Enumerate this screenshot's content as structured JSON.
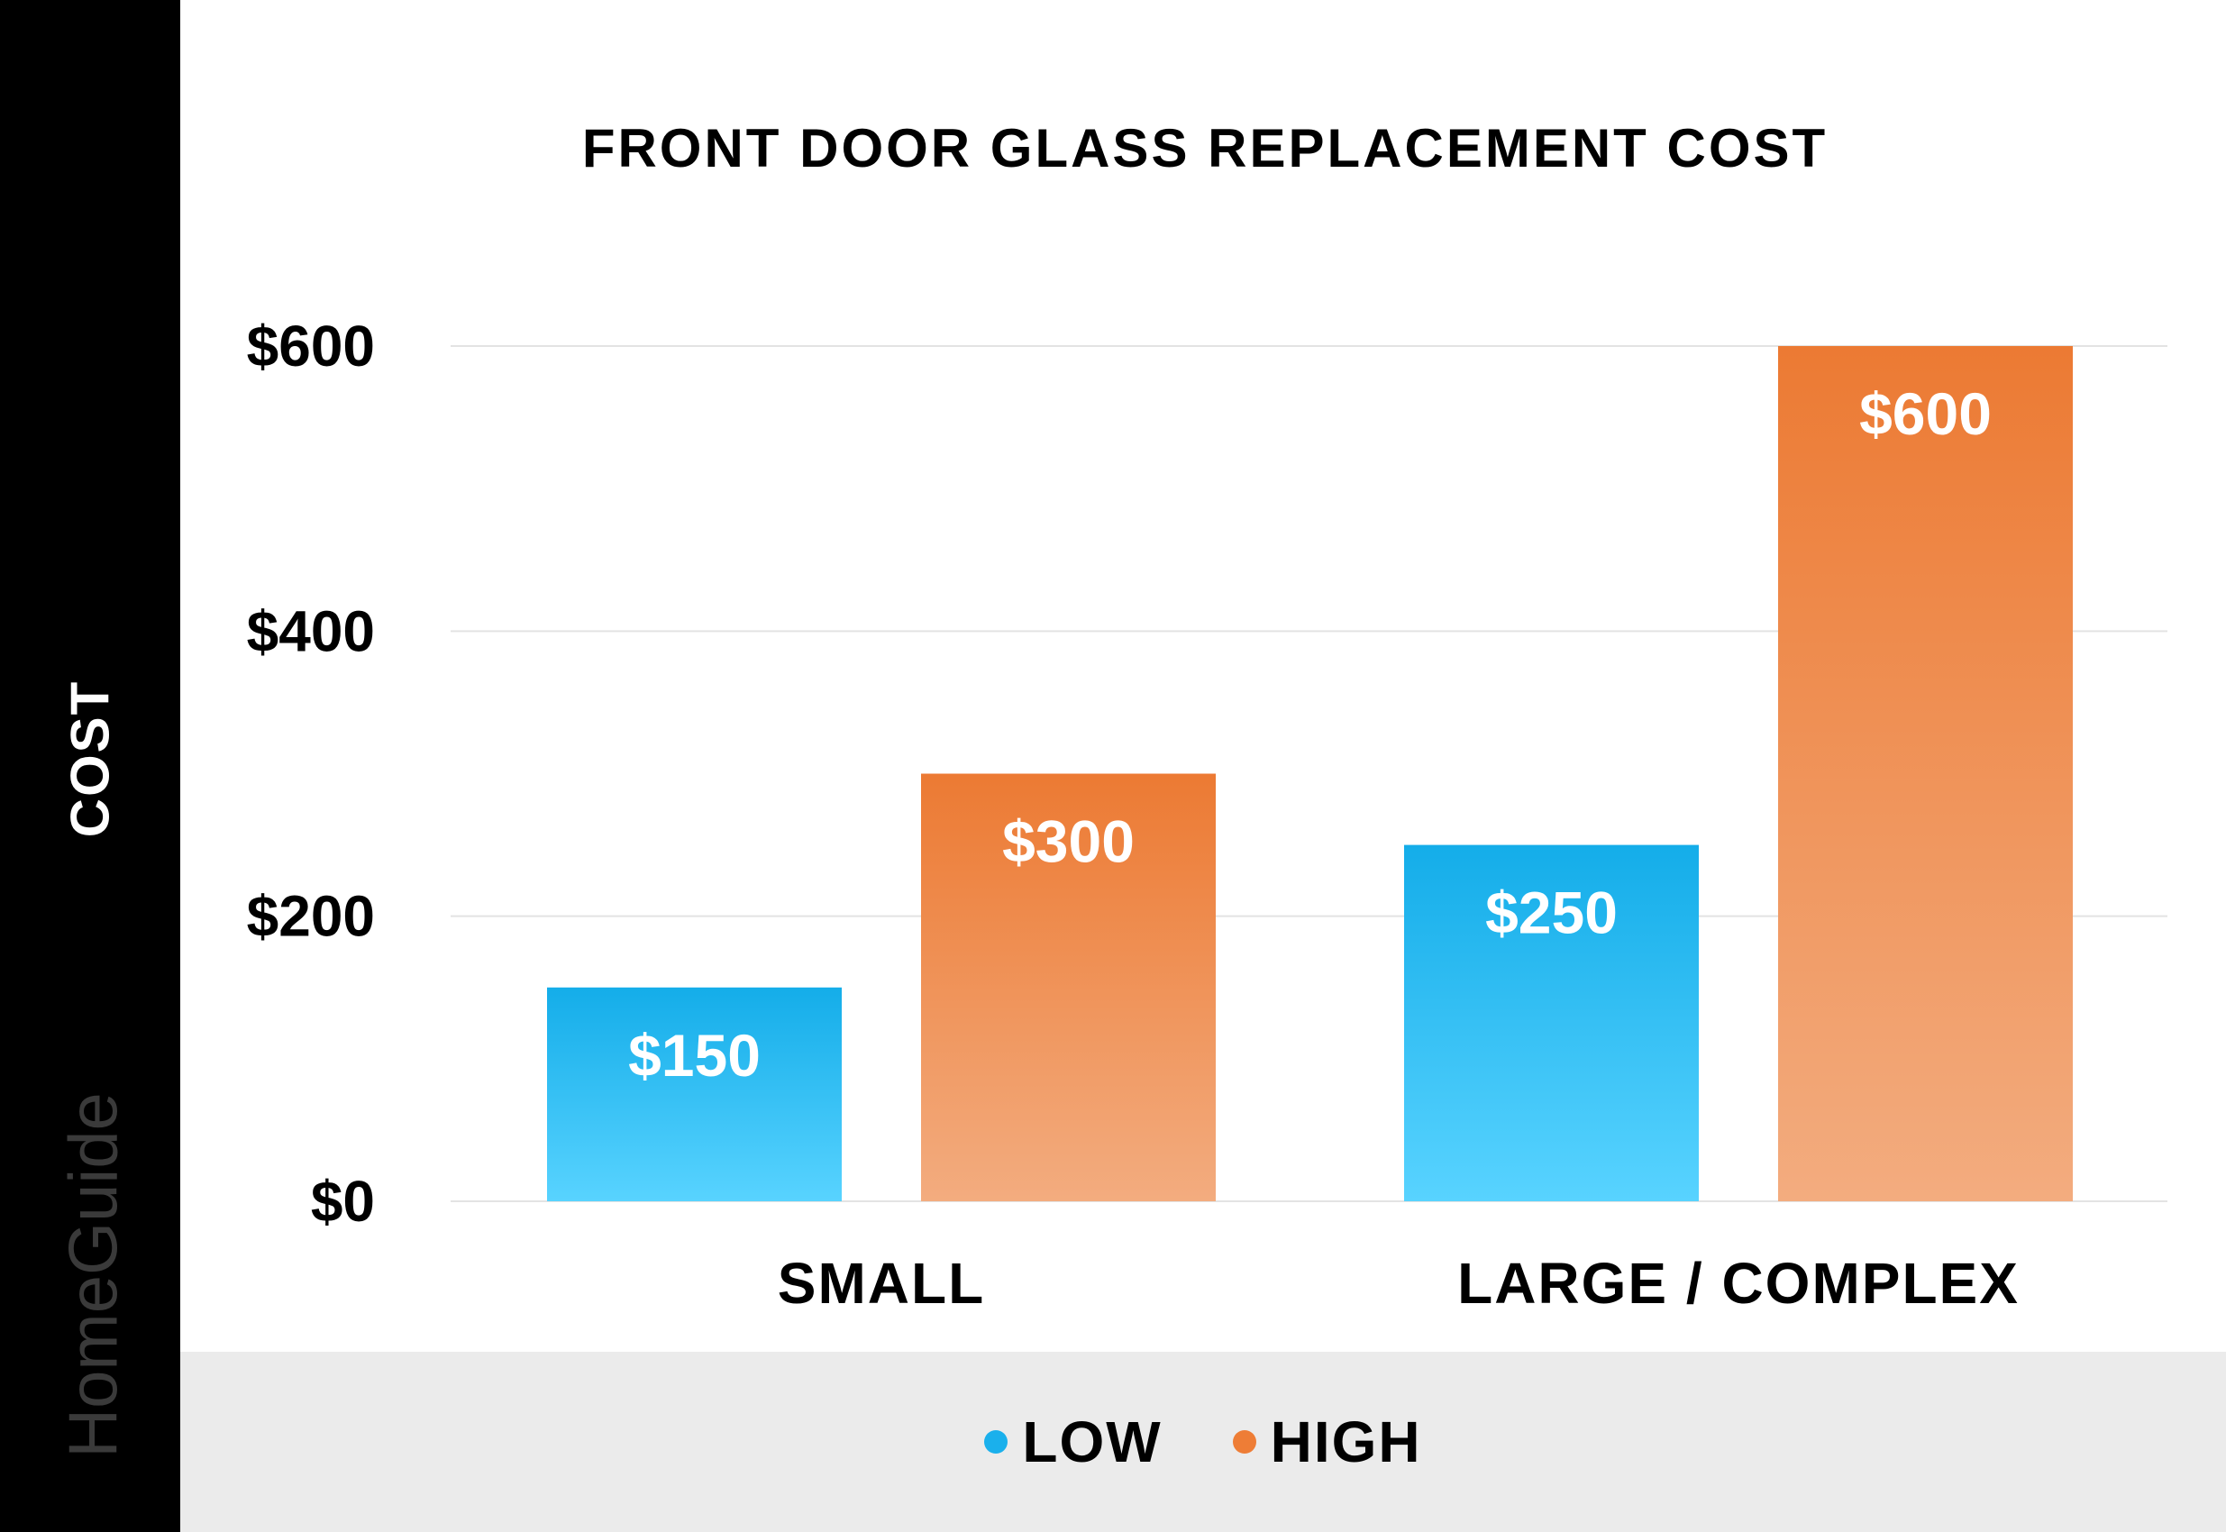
{
  "chart_data": {
    "type": "bar",
    "title": "FRONT DOOR GLASS REPLACEMENT COST",
    "ylabel": "COST",
    "xlabel": "",
    "categories": [
      "SMALL",
      "LARGE / COMPLEX"
    ],
    "series": [
      {
        "name": "LOW",
        "values": [
          150,
          250
        ],
        "labels": [
          "$150",
          "$250"
        ],
        "color": "#1ab0ec"
      },
      {
        "name": "HIGH",
        "values": [
          300,
          600
        ],
        "labels": [
          "$300",
          "$600"
        ],
        "color": "#ee7d36"
      }
    ],
    "ylim": [
      0,
      600
    ],
    "yticks": [
      0,
      200,
      400,
      600
    ],
    "ytick_labels": [
      "$0",
      "$200",
      "$400",
      "$600"
    ],
    "grid": true,
    "legend_position": "bottom"
  },
  "brand": "HomeGuide"
}
